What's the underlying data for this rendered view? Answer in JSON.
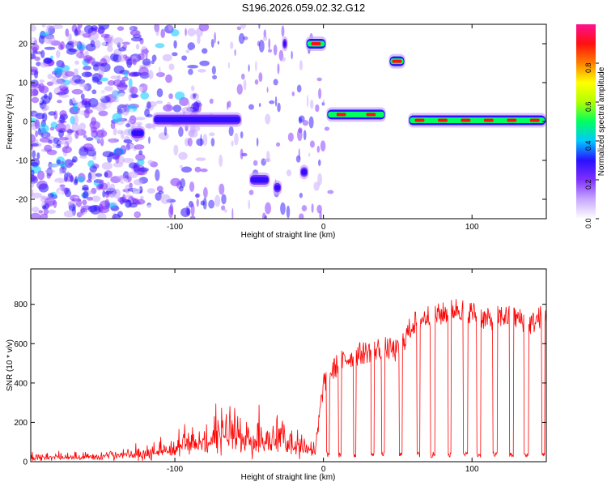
{
  "title": "S196.2026.059.02.32.G12",
  "chart_data": [
    {
      "type": "heatmap",
      "title": "S196.2026.059.02.32.G12",
      "xlabel": "Height of straight line (km)",
      "ylabel": "Frequency (Hz)",
      "xlim": [
        -197,
        150
      ],
      "ylim": [
        -25,
        25
      ],
      "x_ticks": [
        -100,
        0,
        100
      ],
      "y_ticks": [
        -20,
        -10,
        0,
        10,
        20
      ],
      "colorbar": {
        "label": "Normalized spectral amplitude",
        "range": [
          0,
          1
        ],
        "ticks": [
          "0.0",
          "0.2",
          "0.4",
          "0.6",
          "0.8"
        ],
        "colors": [
          "#ffffff",
          "#c8a8ff",
          "#8030ff",
          "#2a10ff",
          "#00c8ff",
          "#00ff60",
          "#b0ff00",
          "#ffff00",
          "#ff8000",
          "#ff1010",
          "#ff1090"
        ]
      },
      "features": [
        {
          "name": "noise",
          "x": [
            -197,
            -120
          ],
          "freq": 0,
          "level": 0.15
        },
        {
          "name": "track",
          "x": [
            -130,
            -120
          ],
          "freq": -3,
          "level": 0.3
        },
        {
          "name": "track",
          "x": [
            -115,
            -55
          ],
          "freq": 0.5,
          "level": 0.35
        },
        {
          "name": "track",
          "x": [
            -50,
            -36
          ],
          "freq": -15,
          "level": 0.35
        },
        {
          "name": "track",
          "x": [
            -34,
            -28
          ],
          "freq": -17,
          "level": 0.3
        },
        {
          "name": "track",
          "x": [
            -16,
            -10
          ],
          "freq": -13,
          "level": 0.4
        },
        {
          "name": "track",
          "x": [
            -28,
            -24
          ],
          "freq": 20,
          "level": 0.3
        },
        {
          "name": "track",
          "x": [
            -12,
            2
          ],
          "freq": 20,
          "level": 0.65
        },
        {
          "name": "track",
          "x": [
            2,
            42
          ],
          "freq": 1.8,
          "level": 0.6
        },
        {
          "name": "track",
          "x": [
            44,
            55
          ],
          "freq": 15.5,
          "level": 0.6
        },
        {
          "name": "track",
          "x": [
            57,
            150
          ],
          "freq": 0.3,
          "level": 0.65
        }
      ]
    },
    {
      "type": "line",
      "xlabel": "Height of straight line (km)",
      "ylabel": "SNR (10 * v/v)",
      "xlim": [
        -197,
        150
      ],
      "ylim": [
        0,
        980
      ],
      "x_ticks": [
        -100,
        0,
        100
      ],
      "y_ticks": [
        0,
        200,
        400,
        600,
        800
      ],
      "color": "#ff0000",
      "series": [
        {
          "name": "SNR",
          "x": [
            -197,
            -150,
            -120,
            -100,
            -80,
            -60,
            -40,
            -20,
            -5,
            0,
            10,
            20,
            30,
            40,
            50,
            60,
            70,
            80,
            90,
            100,
            110,
            120,
            130,
            140,
            150
          ],
          "values": [
            25,
            30,
            45,
            90,
            120,
            160,
            130,
            110,
            70,
            400,
            500,
            540,
            560,
            580,
            560,
            700,
            740,
            750,
            780,
            760,
            720,
            740,
            730,
            700,
            760
          ]
        }
      ],
      "dropouts": [
        [
          2,
          4
        ],
        [
          10,
          12
        ],
        [
          20,
          22
        ],
        [
          32,
          34
        ],
        [
          39,
          41
        ],
        [
          51,
          53
        ],
        [
          63,
          65
        ],
        [
          72,
          75
        ],
        [
          84,
          86
        ],
        [
          94,
          97
        ],
        [
          103,
          106
        ],
        [
          114,
          117
        ],
        [
          125,
          128
        ],
        [
          135,
          138
        ],
        [
          147,
          149
        ]
      ]
    }
  ]
}
